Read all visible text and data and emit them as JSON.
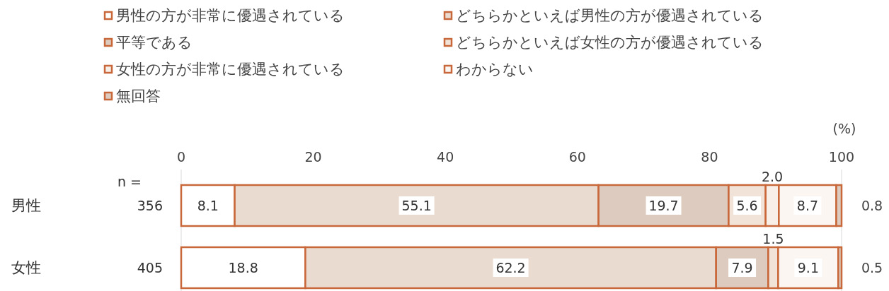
{
  "chart_data": {
    "type": "bar",
    "orientation": "horizontal",
    "stacked": true,
    "categories": [
      "男性",
      "女性"
    ],
    "series": [
      {
        "name": "男性の方が非常に優遇されている",
        "color": "#ffffff",
        "values": [
          8.1,
          18.8
        ],
        "value_labels": [
          "8.1",
          "18.8"
        ]
      },
      {
        "name": "どちらかといえば男性の方が優遇されている",
        "color": "#eadbd0",
        "values": [
          55.1,
          62.2
        ],
        "value_labels": [
          "55.1",
          "62.2"
        ]
      },
      {
        "name": "平等である",
        "color": "#dccbbe",
        "values": [
          19.7,
          7.9
        ],
        "value_labels": [
          "19.7",
          "7.9"
        ]
      },
      {
        "name": "どちらかといえば女性の方が優遇されている",
        "color": "#f1e3d8",
        "values": [
          5.6,
          1.5
        ],
        "value_labels": [
          "5.6",
          "1.5"
        ]
      },
      {
        "name": "女性の方が非常に優遇されている",
        "color": "#f8efe9",
        "values": [
          2.0,
          null
        ],
        "value_labels": [
          "2.0",
          null
        ]
      },
      {
        "name": "わからない",
        "color": "#fcf6f2",
        "values": [
          8.7,
          9.1
        ],
        "value_labels": [
          "8.7",
          "9.1"
        ]
      },
      {
        "name": "無回答",
        "color": "#dccbbe",
        "values": [
          0.8,
          0.5
        ],
        "value_labels": [
          "0.8",
          "0.5"
        ]
      }
    ],
    "xlim": [
      0,
      100
    ],
    "xticks": [
      0,
      20,
      40,
      60,
      80,
      100
    ],
    "xlabel": "(%)",
    "legend": "top",
    "annotations": [
      "n =",
      "356",
      "405"
    ]
  }
}
